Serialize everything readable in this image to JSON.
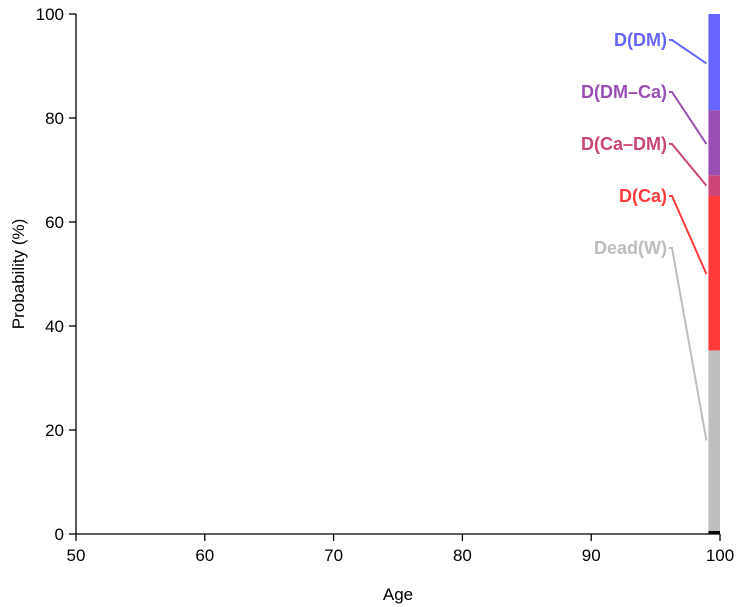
{
  "chart_data": {
    "type": "area",
    "title": "",
    "xlabel": "Age",
    "ylabel": "Probability (%)",
    "xlim": [
      50,
      100
    ],
    "ylim": [
      0,
      100
    ],
    "x_ticks": [
      "50",
      "60",
      "70",
      "80",
      "90",
      "100"
    ],
    "y_ticks": [
      "0",
      "20",
      "40",
      "60",
      "80",
      "100"
    ],
    "stack_x_range": [
      99.1,
      100
    ],
    "stack": [
      {
        "label": "",
        "lower": 0,
        "upper": 0.6,
        "color": "#000000"
      },
      {
        "label": "Dead(W)",
        "lower": 0.6,
        "upper": 35.3,
        "color": "#bebebe"
      },
      {
        "label": "D(Ca)",
        "lower": 35.3,
        "upper": 65.0,
        "color": "#ff3b3b"
      },
      {
        "label": "D(Ca–DM)",
        "lower": 65.0,
        "upper": 69.0,
        "color": "#cc4478"
      },
      {
        "label": "D(DM–Ca)",
        "lower": 69.0,
        "upper": 81.5,
        "color": "#9a4fb5"
      },
      {
        "label": "D(DM)",
        "lower": 81.5,
        "upper": 100,
        "color": "#6666ff"
      }
    ],
    "labels": [
      {
        "text": "D(DM)",
        "color": "#6666ff",
        "value": 90.5
      },
      {
        "text": "D(DM–Ca)",
        "color": "#9a4fb5",
        "value": 75.0
      },
      {
        "text": "D(Ca–DM)",
        "color": "#cc4478",
        "value": 67.0
      },
      {
        "text": "D(Ca)",
        "color": "#ff3b3b",
        "value": 50.0
      },
      {
        "text": "Dead(W)",
        "color": "#bebebe",
        "value": 18.0
      }
    ]
  }
}
